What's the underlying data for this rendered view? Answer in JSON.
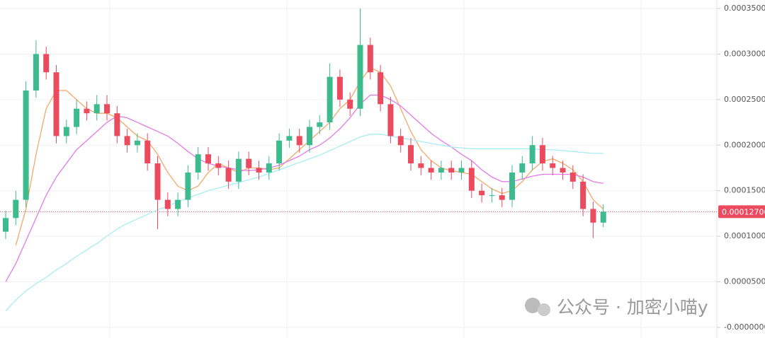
{
  "chart_data": {
    "type": "candlestick",
    "open": [
      0.000105,
      0.00012,
      0.00014,
      0.00026,
      0.0003,
      0.00028,
      0.00021,
      0.00022,
      0.00024,
      0.000235,
      0.000245,
      0.000235,
      0.00021,
      0.0002,
      0.000205,
      0.00018,
      0.00014,
      0.00013,
      0.00014,
      0.00017,
      0.00019,
      0.00018,
      0.000175,
      0.00016,
      0.000185,
      0.000175,
      0.00017,
      0.00018,
      0.000205,
      0.00021,
      0.0002,
      0.00022,
      0.000225,
      0.000275,
      0.00025,
      0.00024,
      0.00031,
      0.00028,
      0.000245,
      0.00021,
      0.0002,
      0.00018,
      0.000175,
      0.00017,
      0.000175,
      0.00017,
      0.000175,
      0.00015,
      0.000145,
      0.000145,
      0.00014,
      0.00017,
      0.00018,
      0.0002,
      0.00018,
      0.000175,
      0.00017,
      0.00016,
      0.00013,
      0.000115
    ],
    "close": [
      0.00012,
      0.00014,
      0.00026,
      0.0003,
      0.00028,
      0.00021,
      0.00022,
      0.00024,
      0.000235,
      0.000245,
      0.000235,
      0.00021,
      0.0002,
      0.000205,
      0.00018,
      0.00014,
      0.00013,
      0.00014,
      0.00017,
      0.00019,
      0.00018,
      0.000175,
      0.00016,
      0.000185,
      0.000175,
      0.00017,
      0.00018,
      0.000205,
      0.00021,
      0.0002,
      0.00022,
      0.000225,
      0.000275,
      0.00025,
      0.00024,
      0.00031,
      0.00028,
      0.000245,
      0.00021,
      0.0002,
      0.00018,
      0.000175,
      0.00017,
      0.000175,
      0.00017,
      0.000175,
      0.00015,
      0.000145,
      0.000145,
      0.00014,
      0.00017,
      0.00018,
      0.0002,
      0.00018,
      0.000175,
      0.00017,
      0.00016,
      0.00013,
      0.000115,
      0.000127
    ],
    "high": [
      0.000128,
      0.00015,
      0.00027,
      0.000315,
      0.000308,
      0.000288,
      0.000228,
      0.00025,
      0.000248,
      0.000255,
      0.000255,
      0.000243,
      0.000218,
      0.000213,
      0.000213,
      0.000188,
      0.000148,
      0.000148,
      0.000178,
      0.000198,
      0.000198,
      0.000188,
      0.000183,
      0.000193,
      0.000193,
      0.000183,
      0.000188,
      0.000213,
      0.000218,
      0.000218,
      0.000228,
      0.000233,
      0.00029,
      0.000283,
      0.000258,
      0.00035,
      0.000318,
      0.000288,
      0.000253,
      0.000218,
      0.000208,
      0.000188,
      0.000183,
      0.000183,
      0.000183,
      0.000183,
      0.000183,
      0.000158,
      0.000153,
      0.000153,
      0.000178,
      0.000188,
      0.00021,
      0.000208,
      0.000188,
      0.000183,
      0.000178,
      0.000168,
      0.000138,
      0.000135
    ],
    "low": [
      9.7e-05,
      0.000112,
      0.000132,
      0.000252,
      0.000272,
      0.000202,
      0.000202,
      0.000212,
      0.000227,
      0.000227,
      0.000227,
      0.000202,
      0.000192,
      0.000192,
      0.000172,
      0.000108,
      0.000122,
      0.000122,
      0.000132,
      0.000162,
      0.000172,
      0.000167,
      0.000152,
      0.000152,
      0.000167,
      0.000162,
      0.000162,
      0.000172,
      0.000197,
      0.000192,
      0.000192,
      0.000212,
      0.000217,
      0.000242,
      0.000232,
      0.000232,
      0.000272,
      0.000237,
      0.000202,
      0.000192,
      0.000172,
      0.000167,
      0.000162,
      0.000162,
      0.000162,
      0.000162,
      0.000142,
      0.000137,
      0.000137,
      0.000132,
      0.000132,
      0.000162,
      0.000172,
      0.000172,
      0.000167,
      0.000162,
      0.000152,
      0.000122,
      9.8e-05,
      0.00011
    ],
    "up_color": "#3dbb8e",
    "down_color": "#ec4a5e",
    "lines": [
      {
        "color": "#f5a86a",
        "values": [
          null,
          9e-05,
          0.00013,
          0.00019,
          0.00024,
          0.00026,
          0.00026,
          0.00025,
          0.00024,
          0.000235,
          0.000235,
          0.00023,
          0.00022,
          0.00021,
          0.000205,
          0.00019,
          0.00017,
          0.000155,
          0.00015,
          0.000155,
          0.00017,
          0.00018,
          0.000175,
          0.00017,
          0.000175,
          0.000175,
          0.000173,
          0.000175,
          0.000185,
          0.000195,
          0.000205,
          0.000215,
          0.000225,
          0.00024,
          0.00025,
          0.00027,
          0.000285,
          0.00028,
          0.000265,
          0.00024,
          0.000215,
          0.000195,
          0.000183,
          0.000175,
          0.000172,
          0.00017,
          0.000168,
          0.00016,
          0.000152,
          0.000147,
          0.00015,
          0.00016,
          0.000173,
          0.000182,
          0.000185,
          0.00018,
          0.000173,
          0.00016,
          0.00014,
          0.00013
        ]
      },
      {
        "color": "#e27be8",
        "values": [
          5e-05,
          7e-05,
          9.5e-05,
          0.00012,
          0.000145,
          0.000165,
          0.00018,
          0.000195,
          0.000205,
          0.000215,
          0.000225,
          0.000232,
          0.00023,
          0.000225,
          0.00022,
          0.000215,
          0.00021,
          0.000202,
          0.000193,
          0.000185,
          0.00018,
          0.000177,
          0.000175,
          0.000173,
          0.000172,
          0.000173,
          0.000175,
          0.000178,
          0.000183,
          0.000188,
          0.000195,
          0.0002,
          0.000208,
          0.000218,
          0.00023,
          0.000245,
          0.000255,
          0.000255,
          0.00025,
          0.000243,
          0.000233,
          0.000223,
          0.000213,
          0.000205,
          0.000198,
          0.00019,
          0.000183,
          0.000173,
          0.000165,
          0.00016,
          0.00016,
          0.000163,
          0.000166,
          0.000168,
          0.000168,
          0.000168,
          0.000168,
          0.000165,
          0.00016,
          0.000158
        ]
      },
      {
        "color": "#a9ecf3",
        "values": [
          1.8e-05,
          3e-05,
          4e-05,
          4.8e-05,
          5.5e-05,
          6.3e-05,
          7e-05,
          7.8e-05,
          8.5e-05,
          9.2e-05,
          0.0001,
          0.000108,
          0.000114,
          0.000119,
          0.000124,
          0.000129,
          0.000133,
          0.000138,
          0.000142,
          0.000146,
          0.00015,
          0.000153,
          0.000156,
          0.000159,
          0.000162,
          0.000165,
          0.000169,
          0.000173,
          0.000177,
          0.000181,
          0.000185,
          0.000189,
          0.000194,
          0.000199,
          0.000204,
          0.000209,
          0.000212,
          0.000212,
          0.00021,
          0.000208,
          0.000206,
          0.000204,
          0.000202,
          0.0002,
          0.000198,
          0.000197,
          0.000196,
          0.000196,
          0.000196,
          0.000196,
          0.000196,
          0.000196,
          0.000196,
          0.000195,
          0.000195,
          0.000194,
          0.000193,
          0.000192,
          0.000191,
          0.000191
        ]
      }
    ],
    "ylim": [
      0,
      0.00035
    ],
    "yticks": [
      {
        "value": 0,
        "label": "-0.00000000"
      },
      {
        "value": 5e-05,
        "label": "0.00005000"
      },
      {
        "value": 0.0001,
        "label": "0.00010000"
      },
      {
        "value": 0.00015,
        "label": "0.00015000"
      },
      {
        "value": 0.0002,
        "label": "0.00020000"
      },
      {
        "value": 0.00025,
        "label": "0.00025000"
      },
      {
        "value": 0.0003,
        "label": "0.00030000"
      },
      {
        "value": 0.00035,
        "label": "0.00035000"
      }
    ],
    "grid": true,
    "last_price": {
      "value": 0.000127,
      "label": "0.00012700",
      "color": "#ec4a5e"
    },
    "watermark": "公众号 · 加密小喵y"
  }
}
